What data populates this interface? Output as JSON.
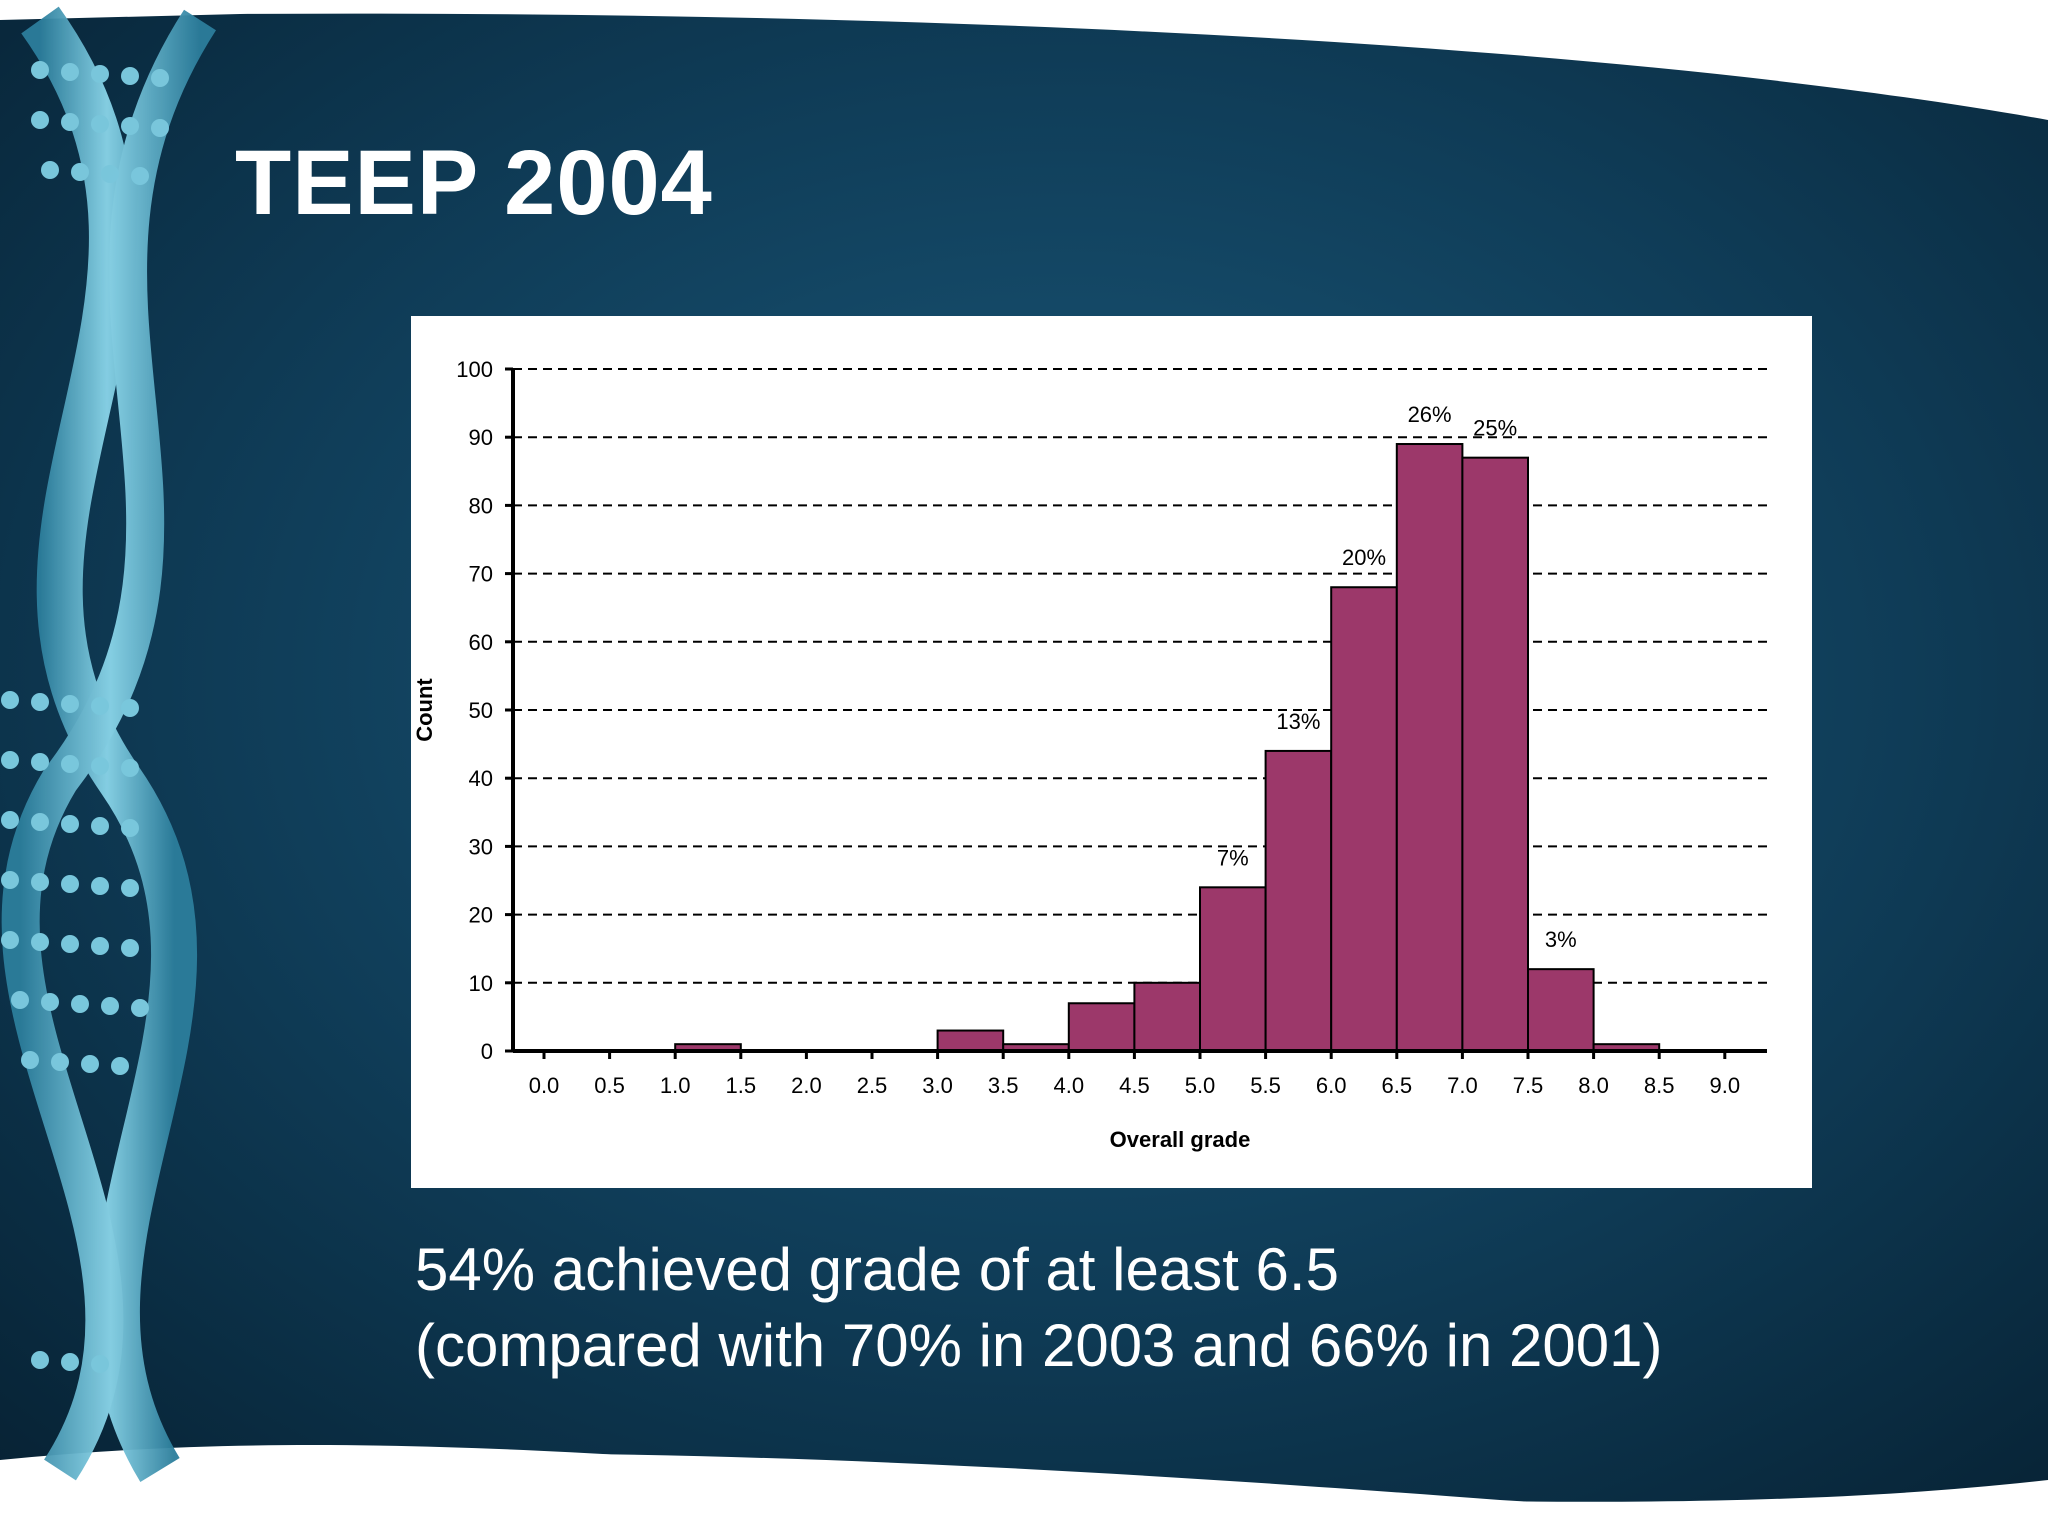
{
  "slide": {
    "title": "TEEP 2004",
    "caption": {
      "line1": "54% achieved grade of at least 6.5",
      "line2": "(compared with 70% in 2003 and 66% in 2001)"
    },
    "colors": {
      "background": "#0f3c57",
      "helix": "#6cc3dc"
    }
  },
  "chart_data": {
    "type": "bar",
    "title": "",
    "xlabel": "Overall grade",
    "ylabel": "Count",
    "ylim": [
      0,
      100
    ],
    "yticks": [
      "0",
      "10",
      "20",
      "30",
      "40",
      "50",
      "60",
      "70",
      "80",
      "90",
      "100"
    ],
    "grid": true,
    "legend": "none",
    "bar_color": "#9c386a",
    "categories": [
      "0.0",
      "0.5",
      "1.0",
      "1.5",
      "2.0",
      "2.5",
      "3.0",
      "3.5",
      "4.0",
      "4.5",
      "5.0",
      "5.5",
      "6.0",
      "6.5",
      "7.0",
      "7.5",
      "8.0",
      "8.5",
      "9.0"
    ],
    "values": [
      0,
      0,
      1,
      0,
      0,
      0,
      3,
      1,
      7,
      10,
      24,
      44,
      68,
      89,
      87,
      12,
      1,
      0,
      0
    ],
    "bar_labels": [
      "",
      "",
      "",
      "",
      "",
      "",
      "",
      "",
      "",
      "",
      "7%",
      "13%",
      "20%",
      "26%",
      "25%",
      "3%",
      "",
      "",
      ""
    ]
  }
}
